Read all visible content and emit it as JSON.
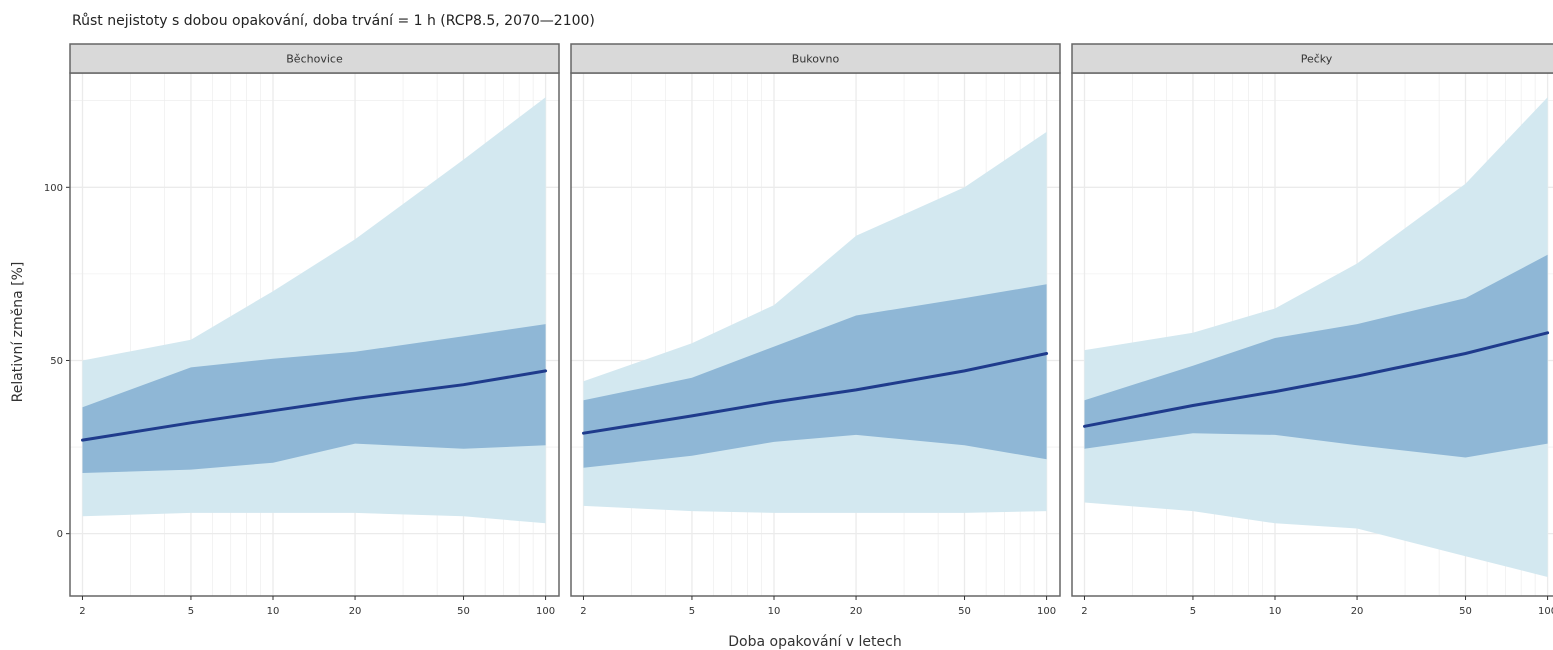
{
  "chart_data": {
    "type": "area",
    "title": "Růst nejistoty s dobou opakování, doba trvání = 1 h (RCP8.5, 2070—2100)",
    "xlabel": "Doba opakování v letech",
    "ylabel": "Relativní změna [%]",
    "x_scale": "log",
    "xlim": [
      1.8,
      112
    ],
    "ylim": [
      -18,
      133
    ],
    "x_ticks": [
      2,
      5,
      10,
      20,
      50,
      100
    ],
    "y_ticks": [
      0,
      50,
      100
    ],
    "grid": true,
    "colors": {
      "outer_band": "#d3e8f0",
      "inner_band": "#8fb7d6",
      "line": "#1f3b8c",
      "strip_bg": "#d9d9d9",
      "grid": "#ebebeb",
      "border": "#666666"
    },
    "panels": [
      {
        "name": "Běchovice",
        "x": [
          2,
          5,
          10,
          20,
          50,
          100
        ],
        "median": [
          27,
          32,
          35.5,
          39,
          43,
          47
        ],
        "inner_low": [
          17.5,
          18.5,
          20.5,
          26,
          24.5,
          25.5
        ],
        "inner_high": [
          36.5,
          48,
          50.5,
          52.5,
          57,
          60.5
        ],
        "outer_low": [
          5,
          6,
          6,
          6,
          5,
          3
        ],
        "outer_high": [
          50,
          56,
          70,
          85,
          108,
          126
        ]
      },
      {
        "name": "Bukovno",
        "x": [
          2,
          5,
          10,
          20,
          50,
          100
        ],
        "median": [
          29,
          34,
          38,
          41.5,
          47,
          52
        ],
        "inner_low": [
          19,
          22.5,
          26.5,
          28.5,
          25.5,
          21.5
        ],
        "inner_high": [
          38.5,
          45,
          54,
          63,
          68,
          72
        ],
        "outer_low": [
          8,
          6.5,
          6,
          6,
          6,
          6.5
        ],
        "outer_high": [
          44,
          55,
          66,
          86,
          100,
          116
        ]
      },
      {
        "name": "Pečky",
        "x": [
          2,
          5,
          10,
          20,
          50,
          100
        ],
        "median": [
          31,
          37,
          41,
          45.5,
          52,
          58
        ],
        "inner_low": [
          24.5,
          29,
          28.5,
          25.5,
          22,
          26
        ],
        "inner_high": [
          38.5,
          48.5,
          56.5,
          60.5,
          68,
          80.5
        ],
        "outer_low": [
          9,
          6.5,
          3,
          1.5,
          -6.5,
          -12.5
        ],
        "outer_high": [
          53,
          58,
          65,
          78,
          101,
          126
        ]
      }
    ]
  }
}
